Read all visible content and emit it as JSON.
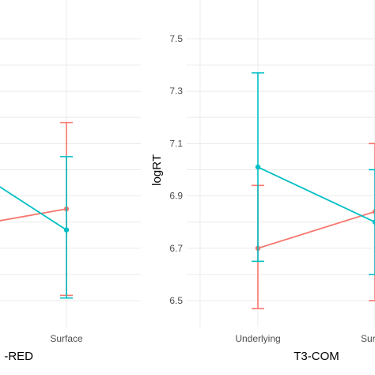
{
  "colors": {
    "series_a": "#f8766d",
    "series_b": "#00bfc4",
    "grid": "#ebebeb",
    "tick_text": "#4d4d4d"
  },
  "chart_data": [
    {
      "type": "line",
      "xlabel": "-RED",
      "categories": [
        "Underlying",
        "Surface"
      ],
      "category_labels_visible": [
        "",
        "Surface"
      ],
      "ylim": [
        6.45,
        7.56
      ],
      "grid": true,
      "series": [
        {
          "color": "#f8766d",
          "values": [
            6.76,
            6.85
          ],
          "error_low": [
            null,
            6.52
          ],
          "error_high": [
            null,
            7.18
          ]
        },
        {
          "color": "#00bfc4",
          "values": [
            7.1,
            6.77
          ],
          "error_low": [
            null,
            6.51
          ],
          "error_high": [
            null,
            7.05
          ]
        }
      ]
    },
    {
      "type": "line",
      "ylabel": "logRT",
      "xlabel": "T3-COM",
      "categories": [
        "Underlying",
        "Surface"
      ],
      "category_labels_visible": [
        "Underlying",
        "Sur"
      ],
      "yticks": [
        "6.5",
        "6.7",
        "6.9",
        "7.1",
        "7.3",
        "7.5"
      ],
      "ylim": [
        6.45,
        7.56
      ],
      "grid": true,
      "series": [
        {
          "color": "#f8766d",
          "values": [
            6.7,
            6.84
          ],
          "error_low": [
            6.47,
            6.5
          ],
          "error_high": [
            6.94,
            7.1
          ]
        },
        {
          "color": "#00bfc4",
          "values": [
            7.01,
            6.8
          ],
          "error_low": [
            6.65,
            6.6
          ],
          "error_high": [
            7.37,
            7.0
          ]
        }
      ]
    }
  ]
}
